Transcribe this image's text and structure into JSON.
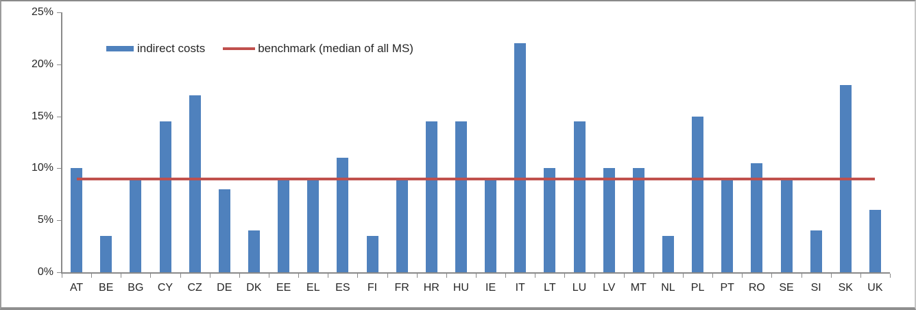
{
  "chart_data": {
    "type": "bar",
    "title": "",
    "xlabel": "",
    "ylabel": "",
    "categories": [
      "AT",
      "BE",
      "BG",
      "CY",
      "CZ",
      "DE",
      "DK",
      "EE",
      "EL",
      "ES",
      "FI",
      "FR",
      "HR",
      "HU",
      "IE",
      "IT",
      "LT",
      "LU",
      "LV",
      "MT",
      "NL",
      "PL",
      "PT",
      "RO",
      "SE",
      "SI",
      "SK",
      "UK"
    ],
    "series": [
      {
        "name": "indirect costs",
        "type": "bar",
        "color": "#4F81BD",
        "values": [
          10,
          3.5,
          9,
          14.5,
          17,
          8,
          4,
          9,
          9,
          11,
          3.5,
          9,
          14.5,
          14.5,
          9,
          22,
          10,
          14.5,
          10,
          10,
          3.5,
          15,
          9,
          10.5,
          9,
          4,
          18,
          6
        ]
      },
      {
        "name": "benchmark (median of all MS)",
        "type": "line",
        "color": "#C0504D",
        "value": 9
      }
    ],
    "ylim": [
      0,
      25
    ],
    "yticks": [
      0,
      5,
      10,
      15,
      20,
      25
    ],
    "ytick_labels": [
      "0%",
      "5%",
      "10%",
      "15%",
      "20%",
      "25%"
    ],
    "unit": "percent",
    "grid": false,
    "legend_position": "inside-top-left"
  },
  "legend": {
    "items": [
      {
        "label": "indirect costs",
        "swatch": "bar",
        "color": "#4F81BD"
      },
      {
        "label": "benchmark (median of all MS)",
        "swatch": "line",
        "color": "#C0504D"
      }
    ]
  }
}
